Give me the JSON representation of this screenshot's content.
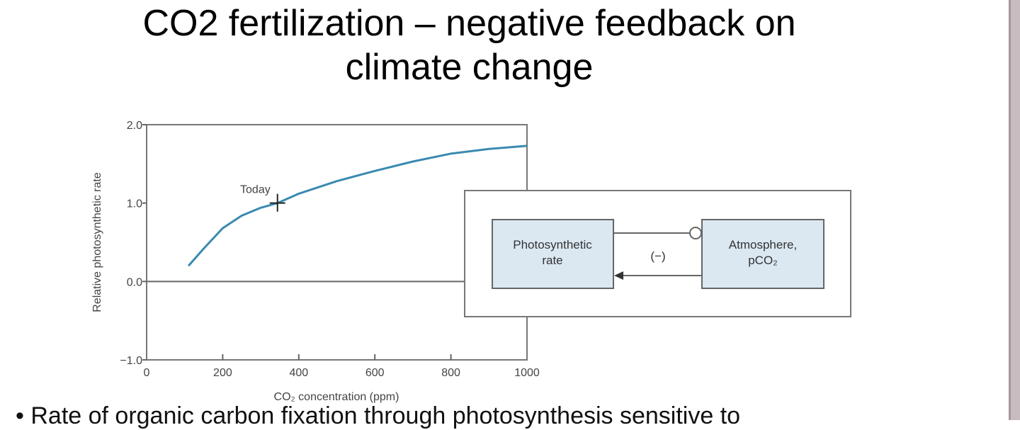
{
  "slide": {
    "title_line1": "CO2 fertilization – negative feedback on",
    "title_line2": "climate change",
    "bullet": "• Rate of organic carbon fixation through photosynthesis sensitive to"
  },
  "chart_data": {
    "type": "line",
    "xlabel": "CO₂ concentration (ppm)",
    "ylabel": "Relative photosynthetic rate",
    "xlim": [
      0,
      1000
    ],
    "ylim": [
      -1.0,
      2.0
    ],
    "xticks": [
      "0",
      "200",
      "400",
      "600",
      "800",
      "1000"
    ],
    "yticks": [
      "2.0",
      "1.0",
      "0.0",
      "−1.0"
    ],
    "grid": false,
    "line_color": "#3a8ab0",
    "x": [
      110,
      150,
      200,
      250,
      300,
      344,
      400,
      500,
      600,
      700,
      800,
      900,
      1000
    ],
    "y": [
      0.2,
      0.42,
      0.68,
      0.84,
      0.94,
      1.0,
      1.12,
      1.28,
      1.41,
      1.53,
      1.63,
      1.69,
      1.73
    ],
    "annotations": [
      {
        "text": "Today",
        "x": 344,
        "y": 1.0
      }
    ]
  },
  "diagram": {
    "box_left": "Photosynthetic|rate",
    "box_right": "Atmosphere,|pCO₂",
    "feedback_sign": "(−)",
    "box_fill": "#dbe8f2"
  }
}
